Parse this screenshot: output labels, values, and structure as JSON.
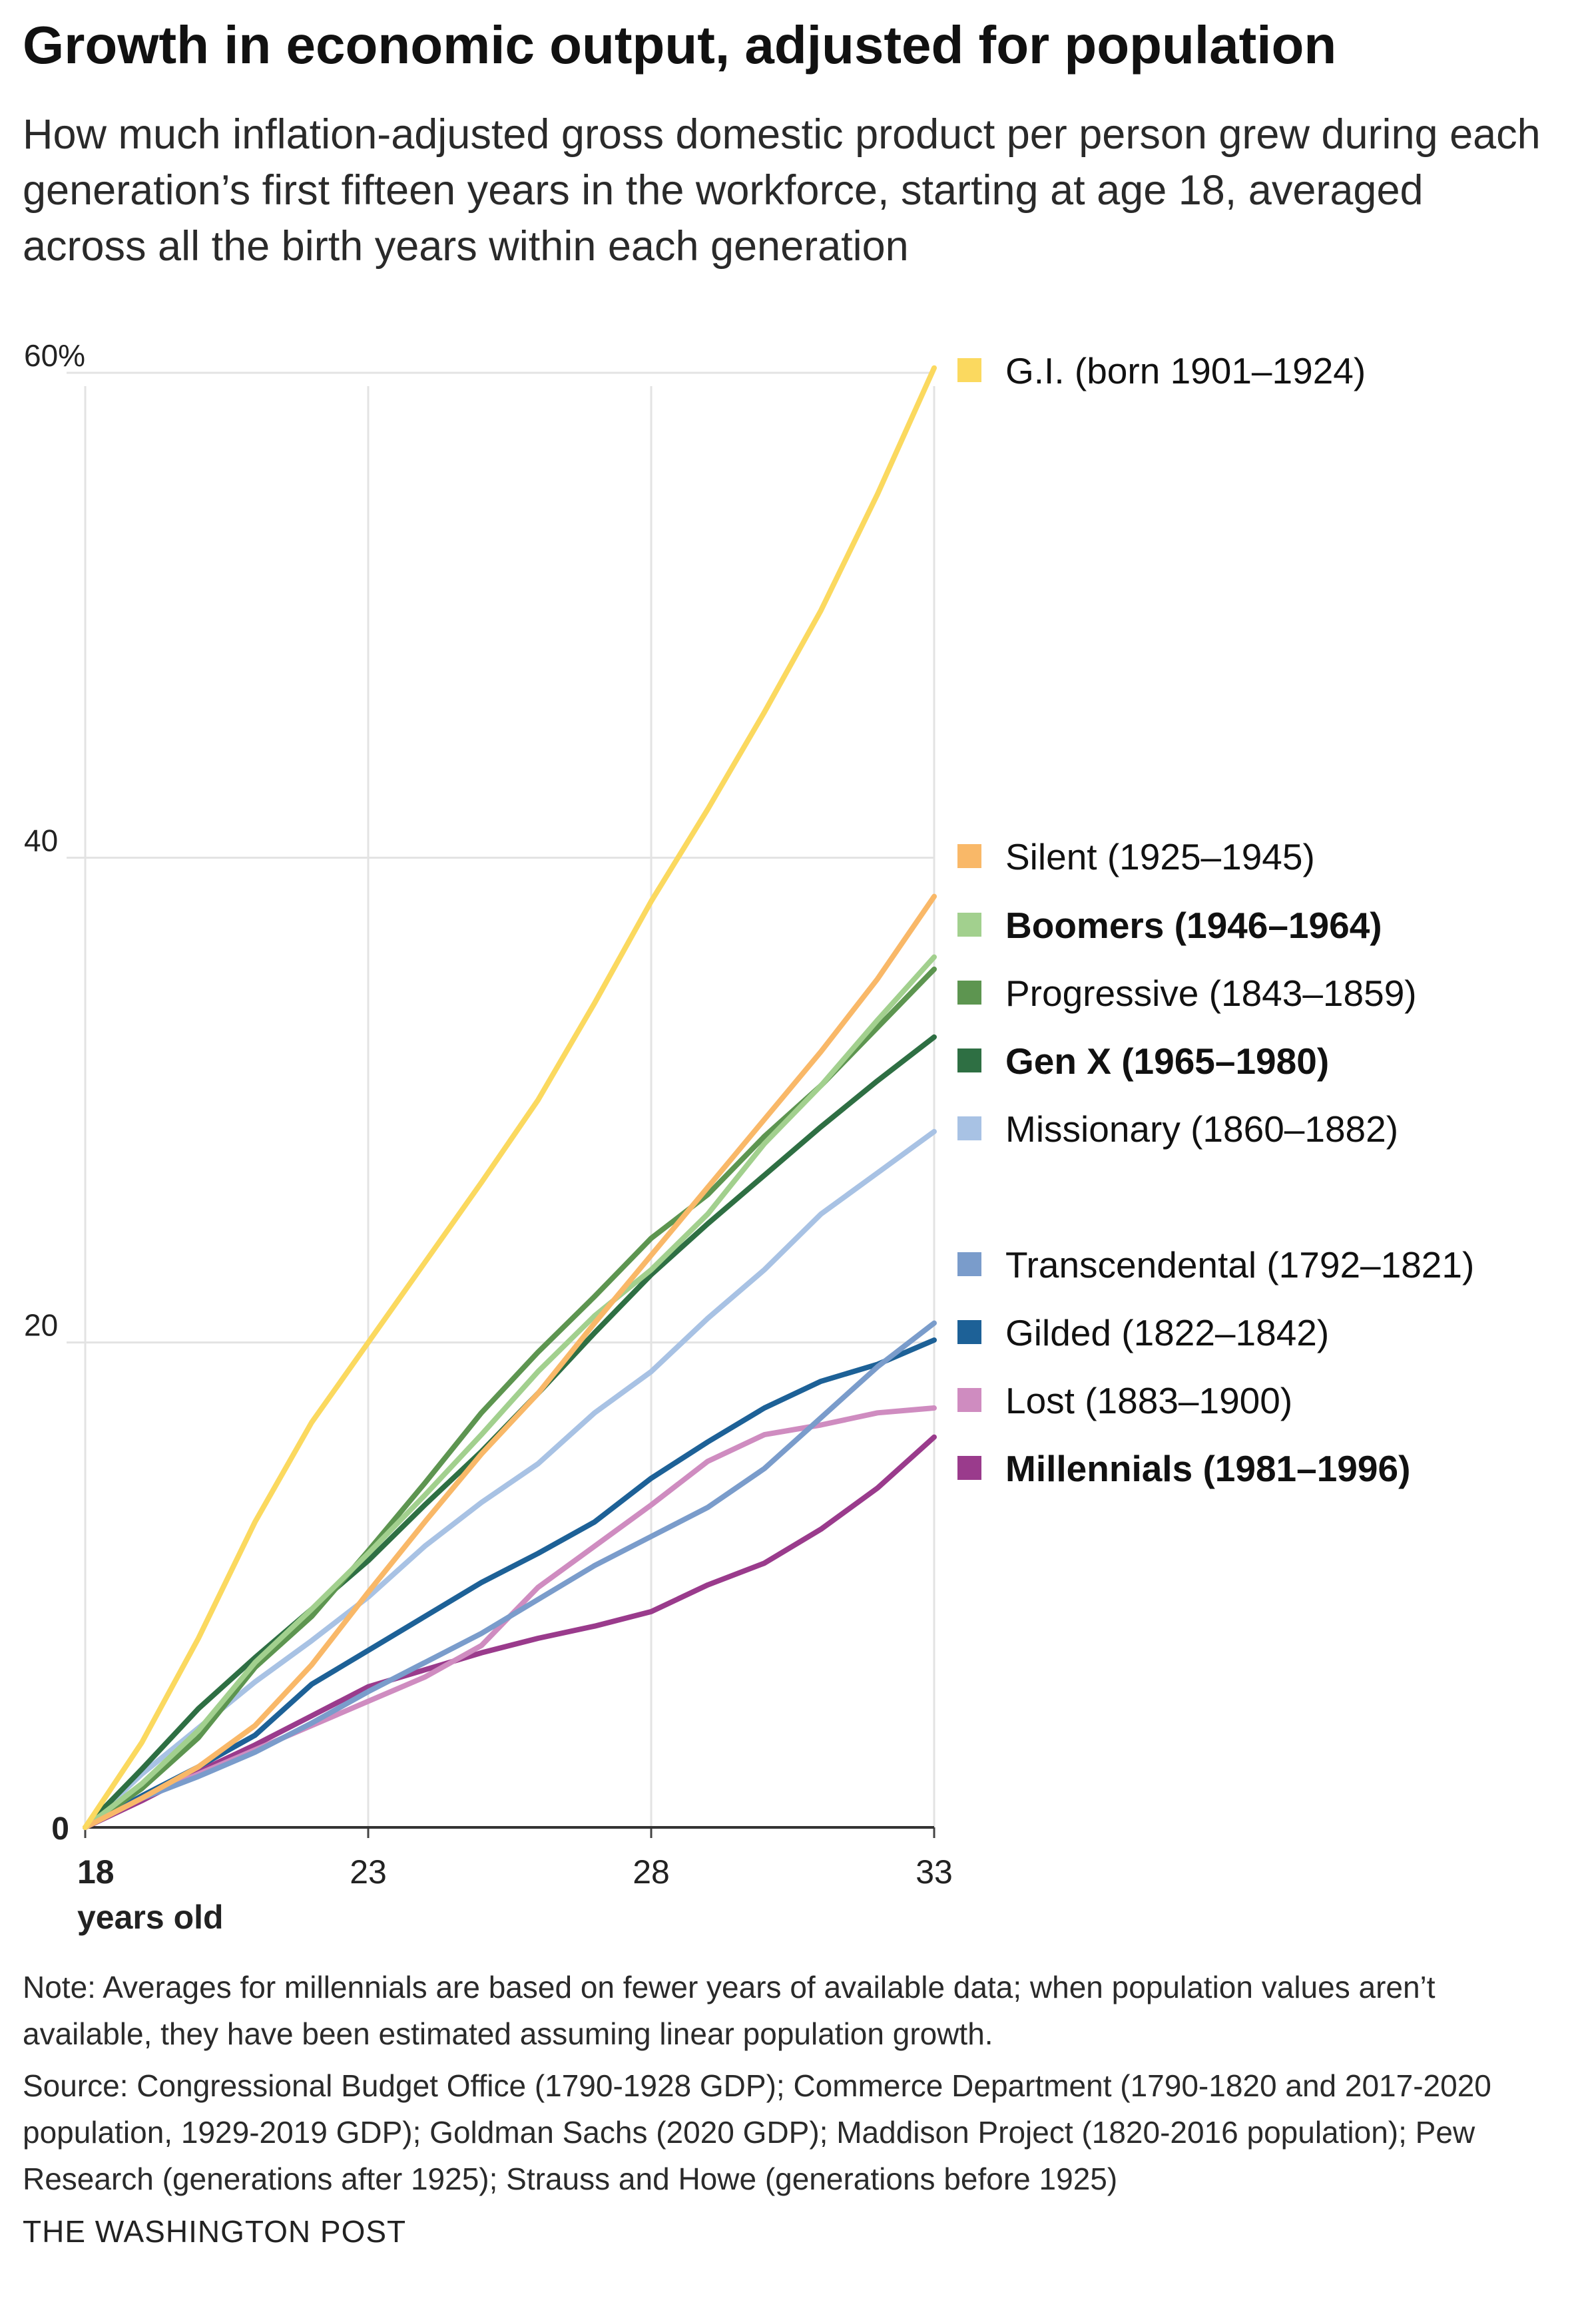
{
  "title": "Growth in economic output, adjusted for population",
  "subtitle": "How much inflation-adjusted gross domestic product per person grew during each generation’s first fifteen years in the workforce, starting at age 18, averaged across all the birth years within each generation",
  "chart_data": {
    "type": "line",
    "title": "Growth in economic output, adjusted for population",
    "xlabel": "years old",
    "ylabel": "",
    "xlim": [
      18,
      33
    ],
    "ylim": [
      0,
      60
    ],
    "x": [
      18,
      19,
      20,
      21,
      22,
      23,
      24,
      25,
      26,
      27,
      28,
      29,
      30,
      31,
      32,
      33
    ],
    "x_ticks": [
      {
        "value": 18,
        "label": "18",
        "bold": true
      },
      {
        "value": 23,
        "label": "23",
        "bold": false
      },
      {
        "value": 28,
        "label": "28",
        "bold": false
      },
      {
        "value": 33,
        "label": "33",
        "bold": false
      }
    ],
    "x_sublabel": "years old",
    "y_ticks": [
      {
        "value": 0,
        "label": "0"
      },
      {
        "value": 20,
        "label": "20"
      },
      {
        "value": 40,
        "label": "40"
      },
      {
        "value": 60,
        "label": "60%"
      }
    ],
    "grid": true,
    "legend_position": "right",
    "series": [
      {
        "name": "G.I. (born 1901–1924)",
        "color": "#fbd95f",
        "bold": false,
        "values": [
          0,
          3.5,
          7.8,
          12.6,
          16.7,
          20.0,
          23.3,
          26.6,
          30.0,
          34.0,
          38.2,
          42.0,
          46.0,
          50.2,
          55.0,
          60.2
        ]
      },
      {
        "name": "Silent (1925–1945)",
        "color": "#f9b868",
        "bold": false,
        "values": [
          0,
          1.2,
          2.5,
          4.2,
          6.7,
          9.7,
          12.6,
          15.4,
          17.9,
          20.8,
          23.6,
          26.4,
          29.2,
          32.0,
          35.0,
          38.4
        ]
      },
      {
        "name": "Boomers (1946–1964)",
        "color": "#a2d08e",
        "bold": true,
        "values": [
          0,
          1.8,
          4.0,
          6.8,
          9.0,
          11.3,
          13.7,
          16.2,
          18.8,
          21.1,
          23.0,
          25.3,
          28.2,
          30.6,
          33.3,
          35.9
        ]
      },
      {
        "name": "Progressive (1843–1859)",
        "color": "#5d9550",
        "bold": false,
        "values": [
          0,
          1.6,
          3.7,
          6.6,
          8.7,
          11.4,
          14.2,
          17.1,
          19.6,
          21.9,
          24.3,
          26.1,
          28.5,
          30.6,
          33.0,
          35.4
        ]
      },
      {
        "name": "Gen X (1965–1980)",
        "color": "#2e6f43",
        "bold": true,
        "values": [
          0,
          2.4,
          4.9,
          7.0,
          9.0,
          11.0,
          13.3,
          15.5,
          17.9,
          20.4,
          22.8,
          24.9,
          26.9,
          28.9,
          30.8,
          32.6
        ]
      },
      {
        "name": "Missionary (1860–1882)",
        "color": "#a8c2e4",
        "bold": false,
        "values": [
          0,
          2.2,
          4.1,
          6.0,
          7.7,
          9.5,
          11.6,
          13.4,
          15.0,
          17.1,
          18.8,
          21.0,
          23.0,
          25.3,
          27.0,
          28.7
        ]
      },
      {
        "name": "Transcendental (1792–1821)",
        "color": "#7a9ccb",
        "bold": false,
        "values": [
          0,
          1.2,
          2.1,
          3.1,
          4.3,
          5.6,
          6.8,
          8.0,
          9.4,
          10.8,
          12.0,
          13.2,
          14.8,
          16.9,
          19.0,
          20.8
        ]
      },
      {
        "name": "Gilded (1822–1842)",
        "color": "#1d6197",
        "bold": false,
        "values": [
          0,
          1.3,
          2.5,
          3.8,
          5.9,
          7.3,
          8.7,
          10.1,
          11.3,
          12.6,
          14.4,
          15.9,
          17.3,
          18.4,
          19.1,
          20.1
        ]
      },
      {
        "name": "Lost (1883–1900)",
        "color": "#cf8cc0",
        "bold": false,
        "values": [
          0,
          1.2,
          2.2,
          3.2,
          4.2,
          5.2,
          6.2,
          7.5,
          9.9,
          11.6,
          13.3,
          15.1,
          16.2,
          16.6,
          17.1,
          17.3
        ]
      },
      {
        "name": "Millennials (1981–1996)",
        "color": "#9a3b8c",
        "bold": true,
        "values": [
          0,
          1.1,
          2.3,
          3.4,
          4.6,
          5.8,
          6.5,
          7.2,
          7.8,
          8.3,
          8.9,
          10.0,
          10.9,
          12.3,
          14.0,
          16.1
        ]
      }
    ]
  },
  "notes": {
    "note": "Note: Averages for millennials are based on fewer years of available data; when population values aren’t available, they have been estimated assuming linear population growth.",
    "source": "Source: Congressional Budget Office (1790-1928 GDP); Commerce Department (1790-1820 and 2017-2020 population, 1929-2019 GDP); Goldman Sachs (2020 GDP); Maddison Project (1820-2016 population); Pew Research (generations after 1925); Strauss and Howe (generations before 1925)"
  },
  "credit": "THE WASHINGTON POST"
}
